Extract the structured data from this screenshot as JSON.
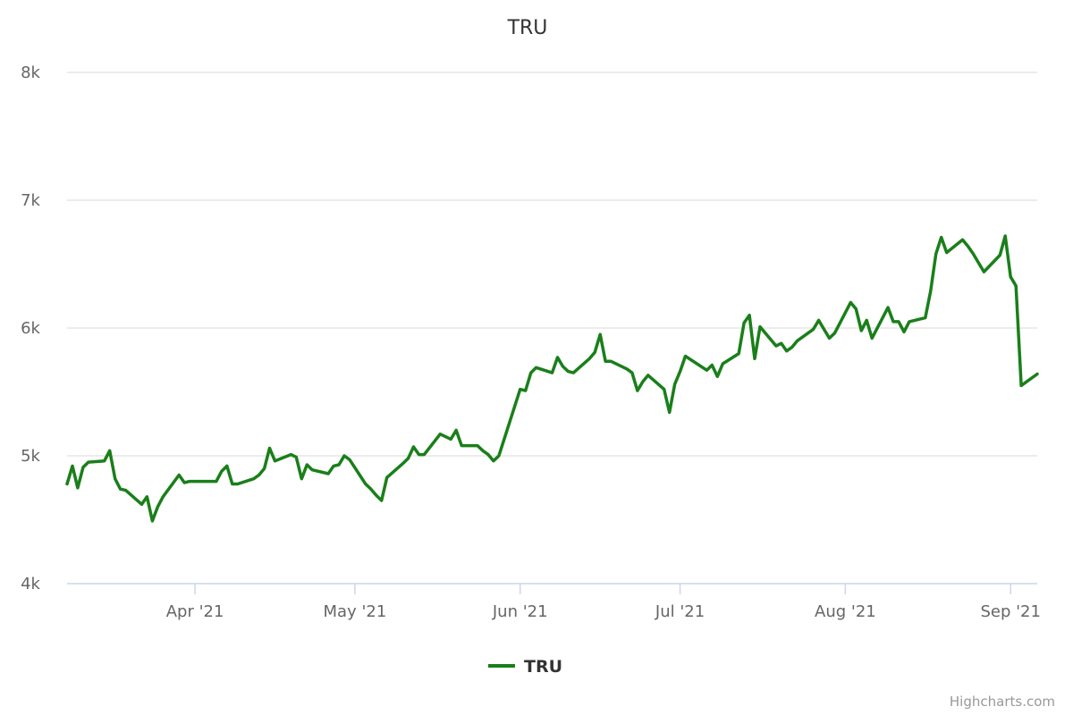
{
  "chart_data": {
    "type": "line",
    "title": "TRU",
    "y_tick_labels": [
      "4k",
      "5k",
      "6k",
      "7k",
      "8k"
    ],
    "y_tick_values": [
      4000,
      5000,
      6000,
      7000,
      8000
    ],
    "ylim": [
      4000,
      8000
    ],
    "xlim": [
      "2021-03-08",
      "2021-09-06"
    ],
    "x_tick_labels": [
      "Apr '21",
      "May '21",
      "Jun '21",
      "Jul '21",
      "Aug '21",
      "Sep '21"
    ],
    "x_tick_dates": [
      "2021-04-01",
      "2021-05-01",
      "2021-06-01",
      "2021-07-01",
      "2021-08-01",
      "2021-09-01"
    ],
    "grid": true,
    "legend_position": "bottom-center",
    "credits": "Highcharts.com",
    "series": [
      {
        "name": "TRU",
        "color": "#1a7f1a",
        "x": [
          "2021-03-08",
          "2021-03-09",
          "2021-03-10",
          "2021-03-11",
          "2021-03-12",
          "2021-03-15",
          "2021-03-16",
          "2021-03-17",
          "2021-03-18",
          "2021-03-19",
          "2021-03-22",
          "2021-03-23",
          "2021-03-24",
          "2021-03-25",
          "2021-03-26",
          "2021-03-29",
          "2021-03-30",
          "2021-03-31",
          "2021-04-01",
          "2021-04-05",
          "2021-04-06",
          "2021-04-07",
          "2021-04-08",
          "2021-04-09",
          "2021-04-12",
          "2021-04-13",
          "2021-04-14",
          "2021-04-15",
          "2021-04-16",
          "2021-04-19",
          "2021-04-20",
          "2021-04-21",
          "2021-04-22",
          "2021-04-23",
          "2021-04-26",
          "2021-04-27",
          "2021-04-28",
          "2021-04-29",
          "2021-04-30",
          "2021-05-03",
          "2021-05-04",
          "2021-05-05",
          "2021-05-06",
          "2021-05-07",
          "2021-05-10",
          "2021-05-11",
          "2021-05-12",
          "2021-05-13",
          "2021-05-14",
          "2021-05-17",
          "2021-05-18",
          "2021-05-19",
          "2021-05-20",
          "2021-05-21",
          "2021-05-24",
          "2021-05-25",
          "2021-05-26",
          "2021-05-27",
          "2021-05-28",
          "2021-06-01",
          "2021-06-02",
          "2021-06-03",
          "2021-06-04",
          "2021-06-07",
          "2021-06-08",
          "2021-06-09",
          "2021-06-10",
          "2021-06-11",
          "2021-06-14",
          "2021-06-15",
          "2021-06-16",
          "2021-06-17",
          "2021-06-18",
          "2021-06-21",
          "2021-06-22",
          "2021-06-23",
          "2021-06-24",
          "2021-06-25",
          "2021-06-28",
          "2021-06-29",
          "2021-06-30",
          "2021-07-01",
          "2021-07-02",
          "2021-07-06",
          "2021-07-07",
          "2021-07-08",
          "2021-07-09",
          "2021-07-12",
          "2021-07-13",
          "2021-07-14",
          "2021-07-15",
          "2021-07-16",
          "2021-07-19",
          "2021-07-20",
          "2021-07-21",
          "2021-07-22",
          "2021-07-23",
          "2021-07-26",
          "2021-07-27",
          "2021-07-28",
          "2021-07-29",
          "2021-07-30",
          "2021-08-02",
          "2021-08-03",
          "2021-08-04",
          "2021-08-05",
          "2021-08-06",
          "2021-08-09",
          "2021-08-10",
          "2021-08-11",
          "2021-08-12",
          "2021-08-13",
          "2021-08-16",
          "2021-08-17",
          "2021-08-18",
          "2021-08-19",
          "2021-08-20",
          "2021-08-23",
          "2021-08-24",
          "2021-08-25",
          "2021-08-26",
          "2021-08-27",
          "2021-08-30",
          "2021-08-31",
          "2021-09-01",
          "2021-09-02",
          "2021-09-03",
          "2021-09-06"
        ],
        "values": [
          4780,
          4920,
          4750,
          4910,
          4950,
          4960,
          5040,
          4820,
          4740,
          4730,
          4620,
          4680,
          4490,
          4600,
          4680,
          4850,
          4790,
          4800,
          4800,
          4800,
          4880,
          4920,
          4780,
          4780,
          4820,
          4850,
          4900,
          5060,
          4960,
          5010,
          4990,
          4820,
          4930,
          4890,
          4860,
          4920,
          4930,
          5000,
          4970,
          4780,
          4740,
          4690,
          4650,
          4830,
          4940,
          4980,
          5070,
          5010,
          5010,
          5170,
          5150,
          5130,
          5200,
          5080,
          5080,
          5040,
          5010,
          4960,
          5000,
          5520,
          5510,
          5650,
          5690,
          5650,
          5770,
          5700,
          5660,
          5650,
          5760,
          5810,
          5950,
          5740,
          5740,
          5680,
          5650,
          5510,
          5580,
          5630,
          5520,
          5340,
          5560,
          5660,
          5780,
          5670,
          5710,
          5620,
          5720,
          5800,
          6040,
          6100,
          5760,
          6010,
          5860,
          5880,
          5820,
          5850,
          5900,
          5990,
          6060,
          5990,
          5920,
          5960,
          6200,
          6150,
          5980,
          6060,
          5920,
          6160,
          6050,
          6050,
          5970,
          6050,
          6080,
          6290,
          6580,
          6710,
          6590,
          6690,
          6640,
          6580,
          6510,
          6440,
          6570,
          6720,
          6400,
          6330,
          5550,
          5640
        ]
      }
    ]
  }
}
